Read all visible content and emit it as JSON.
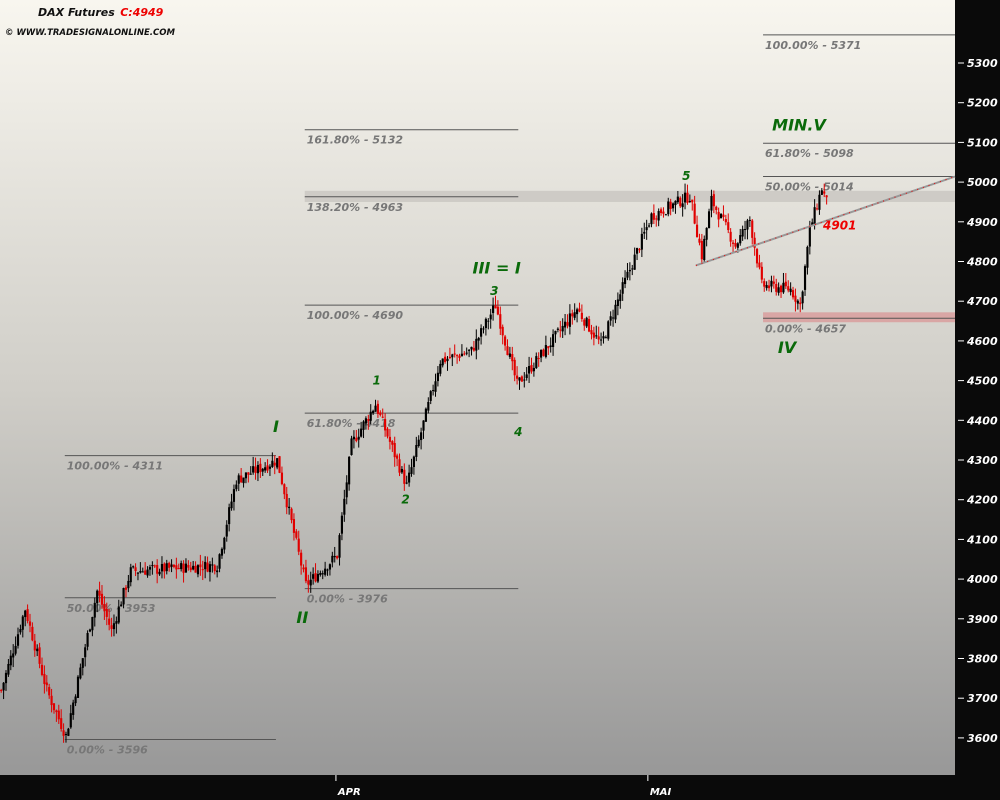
{
  "chart_data": {
    "type": "candlestick",
    "title": "DAX Futures",
    "last_label": "C:4949",
    "copyright": "© WWW.TRADESIGNALONLINE.COM",
    "ylim": [
      3540,
      5400
    ],
    "yticks": [
      3600,
      3700,
      3800,
      3900,
      4000,
      4100,
      4200,
      4300,
      4400,
      4500,
      4600,
      4700,
      4800,
      4900,
      5000,
      5100,
      5200,
      5300
    ],
    "xticks": [
      {
        "bar": 140,
        "label": "APR"
      },
      {
        "bar": 270,
        "label": "MAI"
      }
    ],
    "bars_total": 398,
    "path": [
      [
        0,
        3720
      ],
      [
        10,
        3925
      ],
      [
        19,
        3720
      ],
      [
        27,
        3605
      ],
      [
        40,
        3970
      ],
      [
        46,
        3870
      ],
      [
        54,
        4020
      ],
      [
        90,
        4035
      ],
      [
        98,
        4250
      ],
      [
        115,
        4300
      ],
      [
        127,
        3985
      ],
      [
        140,
        4060
      ],
      [
        146,
        4340
      ],
      [
        156,
        4440
      ],
      [
        169,
        4235
      ],
      [
        183,
        4550
      ],
      [
        196,
        4575
      ],
      [
        206,
        4690
      ],
      [
        215,
        4490
      ],
      [
        227,
        4580
      ],
      [
        240,
        4680
      ],
      [
        250,
        4590
      ],
      [
        260,
        4750
      ],
      [
        271,
        4915
      ],
      [
        287,
        4965
      ],
      [
        292,
        4815
      ],
      [
        296,
        4955
      ],
      [
        306,
        4840
      ],
      [
        312,
        4905
      ],
      [
        317,
        4740
      ],
      [
        329,
        4730
      ],
      [
        333,
        4690
      ],
      [
        337,
        4880
      ],
      [
        342,
        4985
      ],
      [
        344,
        4949
      ]
    ],
    "fib_levels": [
      {
        "price": 4311,
        "label": "100.00% - 4311",
        "from": 27,
        "to": 115
      },
      {
        "price": 3953,
        "label": "50.00% - 3953",
        "from": 27,
        "to": 115
      },
      {
        "price": 3596,
        "label": "0.00% - 3596",
        "from": 27,
        "to": 115
      },
      {
        "price": 5132,
        "label": "161.80% - 5132",
        "from": 127,
        "to": 216
      },
      {
        "price": 4963,
        "label": "138.20% - 4963",
        "from": 127,
        "to": 216
      },
      {
        "price": 4690,
        "label": "100.00% - 4690",
        "from": 127,
        "to": 216
      },
      {
        "price": 4418,
        "label": "61.80% - 4418",
        "from": 127,
        "to": 216
      },
      {
        "price": 3976,
        "label": "0.00% - 3976",
        "from": 127,
        "to": 216
      },
      {
        "price": 5371,
        "label": "100.00% - 5371",
        "from": 318,
        "to": 398
      },
      {
        "price": 5098,
        "label": "61.80% - 5098",
        "from": 318,
        "to": 398
      },
      {
        "price": 5014,
        "label": "50.00% - 5014",
        "from": 318,
        "to": 398
      },
      {
        "price": 4657,
        "label": "0.00% - 4657",
        "from": 318,
        "to": 398
      }
    ],
    "zones": [
      {
        "low": 4950,
        "high": 4978,
        "from": 127,
        "to": 398,
        "color": "#c8c6c0"
      },
      {
        "low": 4647,
        "high": 4672,
        "from": 318,
        "to": 398,
        "color": "#d99a9a"
      }
    ],
    "trendline": {
      "from": [
        290,
        4790
      ],
      "to": [
        398,
        5014
      ],
      "label": "4901",
      "label_bar": 343,
      "label_price": 4880
    },
    "wave_labels": [
      {
        "text": "I",
        "bar": 115,
        "price": 4370,
        "size": "big"
      },
      {
        "text": "II",
        "bar": 126,
        "price": 3890,
        "size": "big"
      },
      {
        "text": "III = I",
        "bar": 207,
        "price": 4770,
        "size": "big"
      },
      {
        "text": "1",
        "bar": 157,
        "price": 4490,
        "size": "small"
      },
      {
        "text": "2",
        "bar": 169,
        "price": 4190,
        "size": "small"
      },
      {
        "text": "3",
        "bar": 206,
        "price": 4715,
        "size": "small"
      },
      {
        "text": "4",
        "bar": 216,
        "price": 4360,
        "size": "small"
      },
      {
        "text": "5",
        "bar": 286,
        "price": 5005,
        "size": "small"
      },
      {
        "text": "MIN.V",
        "bar": 333,
        "price": 5130,
        "size": "big"
      },
      {
        "text": "IV",
        "bar": 328,
        "price": 4570,
        "size": "big"
      }
    ]
  }
}
